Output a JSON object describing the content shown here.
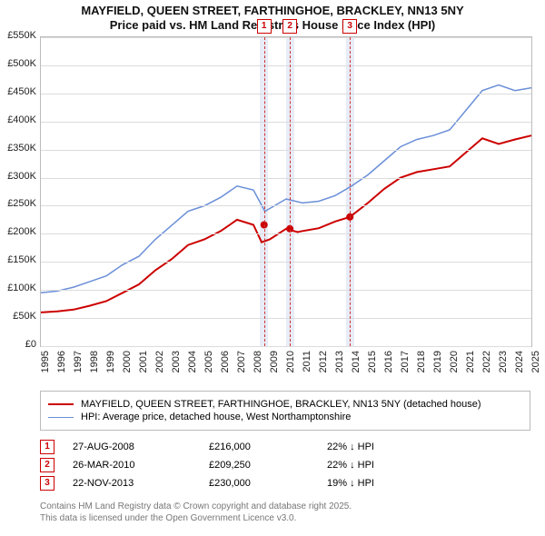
{
  "title_line1": "MAYFIELD, QUEEN STREET, FARTHINGHOE, BRACKLEY, NN13 5NY",
  "title_line2": "Price paid vs. HM Land Registry's House Price Index (HPI)",
  "chart": {
    "type": "line",
    "background_color": "#ffffff",
    "grid_color": "#dcdcdc",
    "axis_color": "#bbbbbb",
    "label_fontsize": 11,
    "title_fontsize": 13,
    "x": {
      "min": 1995,
      "max": 2025,
      "ticks": [
        1995,
        1996,
        1997,
        1998,
        1999,
        2000,
        2001,
        2002,
        2003,
        2004,
        2005,
        2006,
        2007,
        2008,
        2009,
        2010,
        2011,
        2012,
        2013,
        2014,
        2015,
        2016,
        2017,
        2018,
        2019,
        2020,
        2021,
        2022,
        2023,
        2024,
        2025
      ]
    },
    "y": {
      "min": 0,
      "max": 550,
      "unit_suffix": "K",
      "currency": "£",
      "ticks": [
        0,
        50,
        100,
        150,
        200,
        250,
        300,
        350,
        400,
        450,
        500,
        550
      ]
    },
    "series": [
      {
        "id": "property",
        "label": "MAYFIELD, QUEEN STREET, FARTHINGHOE, BRACKLEY, NN13 5NY (detached house)",
        "color": "#cc0000",
        "line_width": 2,
        "data": [
          [
            1995,
            60
          ],
          [
            1996,
            62
          ],
          [
            1997,
            65
          ],
          [
            1998,
            72
          ],
          [
            1999,
            80
          ],
          [
            2000,
            95
          ],
          [
            2001,
            110
          ],
          [
            2002,
            135
          ],
          [
            2003,
            155
          ],
          [
            2004,
            180
          ],
          [
            2005,
            190
          ],
          [
            2006,
            205
          ],
          [
            2007,
            225
          ],
          [
            2008,
            216
          ],
          [
            2008.5,
            185
          ],
          [
            2009,
            190
          ],
          [
            2010,
            209
          ],
          [
            2010.7,
            203
          ],
          [
            2011,
            205
          ],
          [
            2012,
            210
          ],
          [
            2013,
            222
          ],
          [
            2013.9,
            230
          ],
          [
            2015,
            255
          ],
          [
            2016,
            280
          ],
          [
            2017,
            300
          ],
          [
            2018,
            310
          ],
          [
            2019,
            315
          ],
          [
            2020,
            320
          ],
          [
            2021,
            345
          ],
          [
            2022,
            370
          ],
          [
            2023,
            360
          ],
          [
            2024,
            368
          ],
          [
            2025,
            375
          ]
        ],
        "markers": [
          {
            "x": 2008.65,
            "y": 216
          },
          {
            "x": 2010.23,
            "y": 209
          },
          {
            "x": 2013.9,
            "y": 230
          }
        ],
        "marker_style": "circle",
        "marker_fill": "#cc0000",
        "marker_size": 4
      },
      {
        "id": "hpi",
        "label": "HPI: Average price, detached house, West Northamptonshire",
        "color": "#6a8fd8",
        "line_width": 1.5,
        "data": [
          [
            1995,
            95
          ],
          [
            1996,
            98
          ],
          [
            1997,
            105
          ],
          [
            1998,
            115
          ],
          [
            1999,
            125
          ],
          [
            2000,
            145
          ],
          [
            2001,
            160
          ],
          [
            2002,
            190
          ],
          [
            2003,
            215
          ],
          [
            2004,
            240
          ],
          [
            2005,
            250
          ],
          [
            2006,
            265
          ],
          [
            2007,
            285
          ],
          [
            2008,
            278
          ],
          [
            2008.7,
            240
          ],
          [
            2009,
            245
          ],
          [
            2010,
            262
          ],
          [
            2011,
            255
          ],
          [
            2012,
            258
          ],
          [
            2013,
            268
          ],
          [
            2014,
            285
          ],
          [
            2015,
            305
          ],
          [
            2016,
            330
          ],
          [
            2017,
            355
          ],
          [
            2018,
            368
          ],
          [
            2019,
            375
          ],
          [
            2020,
            385
          ],
          [
            2021,
            420
          ],
          [
            2022,
            455
          ],
          [
            2023,
            465
          ],
          [
            2024,
            455
          ],
          [
            2025,
            460
          ]
        ]
      }
    ],
    "events": [
      {
        "n": "1",
        "x": 2008.65,
        "date": "27-AUG-2008",
        "price": "£216,000",
        "delta": "22% ↓ HPI"
      },
      {
        "n": "2",
        "x": 2010.23,
        "date": "26-MAR-2010",
        "price": "£209,250",
        "delta": "22% ↓ HPI"
      },
      {
        "n": "3",
        "x": 2013.9,
        "date": "22-NOV-2013",
        "price": "£230,000",
        "delta": "19% ↓ HPI"
      }
    ],
    "event_band_color": "#e8ecf7",
    "event_band_halfwidth_years": 0.25,
    "event_line_color": "#cc3333",
    "event_box_border": "#cc0000",
    "event_box_text": "#cc0000"
  },
  "footer": {
    "line1": "Contains HM Land Registry data © Crown copyright and database right 2025.",
    "line2": "This data is licensed under the Open Government Licence v3.0."
  }
}
